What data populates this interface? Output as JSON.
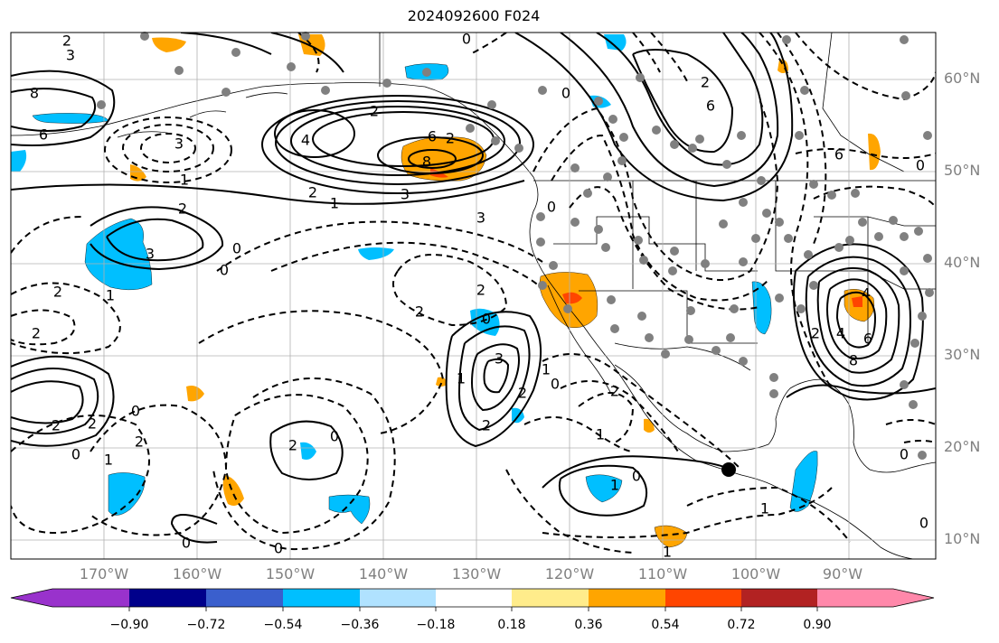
{
  "title": "2024092600 F024",
  "lat_labels": [
    "60°N",
    "50°N",
    "40°N",
    "30°N",
    "20°N",
    "10°N"
  ],
  "lon_labels": [
    "170°W",
    "160°W",
    "150°W",
    "140°W",
    "130°W",
    "120°W",
    "110°W",
    "100°W",
    "90°W"
  ],
  "colorbar": {
    "colors": [
      "#9932CC",
      "#00008B",
      "#3A5FCD",
      "#00BFFF",
      "#B0E2FF",
      "#FFFFFF",
      "#FFEC8B",
      "#FFA500",
      "#FF4500",
      "#B22222",
      "#FF88AA"
    ],
    "tick_labels": [
      "−0.90",
      "−0.72",
      "−0.54",
      "−0.36",
      "−0.18",
      "0.18",
      "0.36",
      "0.54",
      "0.72",
      "0.90"
    ]
  },
  "contour_labels": [
    "2",
    "3",
    "0",
    "8",
    "6",
    "3",
    "2",
    "4",
    "2",
    "6",
    "8",
    "2",
    "3",
    "1",
    "2",
    "3",
    "0",
    "1",
    "2",
    "2",
    "0",
    "2",
    "1",
    "3",
    "0",
    "4",
    "6",
    "1",
    "2",
    "2",
    "1",
    "3",
    "2",
    "0",
    "1",
    "2",
    "2",
    "0",
    "0",
    "2",
    "0",
    "1",
    "2",
    "1",
    "0",
    "0",
    "2",
    "1",
    "0",
    "0",
    "0",
    "1",
    "6",
    "2",
    "0",
    "4",
    "6",
    "8",
    "2",
    "0",
    "0"
  ],
  "station_marker": "closed-circle"
}
